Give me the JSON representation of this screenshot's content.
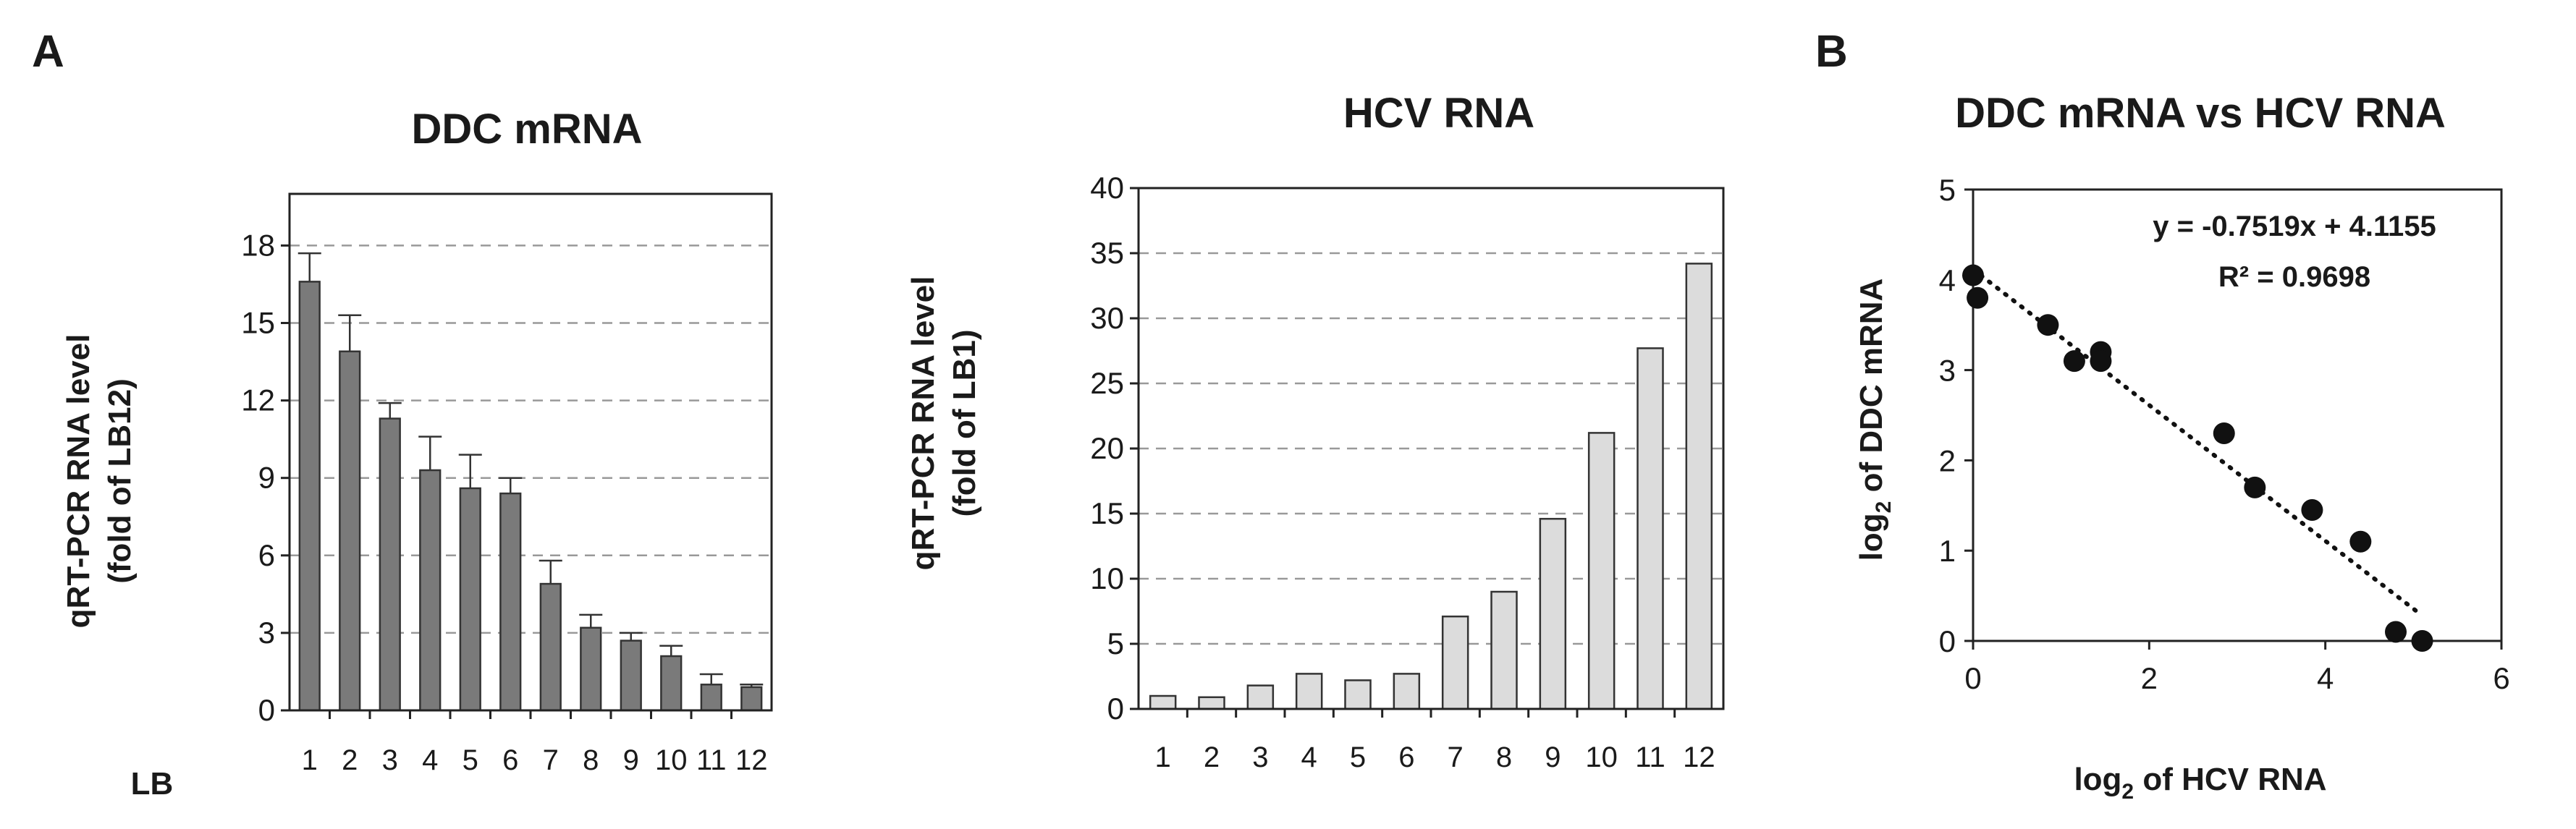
{
  "panel_labels": [
    "A",
    "B"
  ],
  "chart_data": [
    {
      "type": "bar",
      "title": "DDC mRNA",
      "ylabel": [
        "qRT-PCR RNA level",
        "(fold of LB12)"
      ],
      "xlabel": "LB",
      "categories": [
        "1",
        "2",
        "3",
        "4",
        "5",
        "6",
        "7",
        "8",
        "9",
        "10",
        "11",
        "12"
      ],
      "values": [
        16.6,
        13.9,
        11.3,
        9.3,
        8.6,
        8.4,
        4.9,
        3.2,
        2.7,
        2.1,
        1.0,
        0.9
      ],
      "errors": [
        1.1,
        1.4,
        0.6,
        1.3,
        1.3,
        0.6,
        0.9,
        0.5,
        0.3,
        0.4,
        0.4,
        0.1
      ],
      "yticks": [
        0,
        3,
        6,
        9,
        12,
        15,
        18
      ],
      "ylim": [
        0,
        20
      ],
      "grid": "dashed horizontal",
      "color": "#7a7a7a"
    },
    {
      "type": "bar",
      "title": "HCV RNA",
      "ylabel": [
        "qRT-PCR RNA level",
        "(fold of LB1)"
      ],
      "categories": [
        "1",
        "2",
        "3",
        "4",
        "5",
        "6",
        "7",
        "8",
        "9",
        "10",
        "11",
        "12"
      ],
      "values": [
        1.0,
        0.9,
        1.8,
        2.7,
        2.2,
        2.7,
        7.1,
        9.0,
        14.6,
        21.2,
        27.7,
        34.2
      ],
      "yticks": [
        0,
        5,
        10,
        15,
        20,
        25,
        30,
        35,
        40
      ],
      "ylim": [
        0,
        40
      ],
      "grid": "dashed horizontal",
      "color": "#dcdcdc"
    },
    {
      "type": "scatter",
      "title": "DDC mRNA vs HCV RNA",
      "xlabel": "log2 of HCV RNA",
      "ylabel": "log2 of DDC mRNA",
      "x": [
        0.0,
        0.05,
        0.85,
        1.15,
        1.45,
        1.45,
        2.85,
        3.2,
        3.85,
        4.4,
        4.8,
        5.1
      ],
      "y": [
        4.05,
        3.8,
        3.5,
        3.1,
        3.2,
        3.1,
        2.3,
        1.7,
        1.45,
        1.1,
        0.1,
        0.0
      ],
      "xticks": [
        0,
        2,
        4,
        6
      ],
      "yticks": [
        0,
        1,
        2,
        3,
        4,
        5
      ],
      "xlim": [
        0,
        6
      ],
      "ylim": [
        0,
        5
      ],
      "trendline": {
        "style": "dotted",
        "slope": -0.7519,
        "intercept": 4.1155,
        "x_range": [
          0,
          5.1
        ],
        "equation_label": "y = -0.7519x + 4.1155",
        "r2_label": "R² = 0.9698"
      }
    }
  ]
}
